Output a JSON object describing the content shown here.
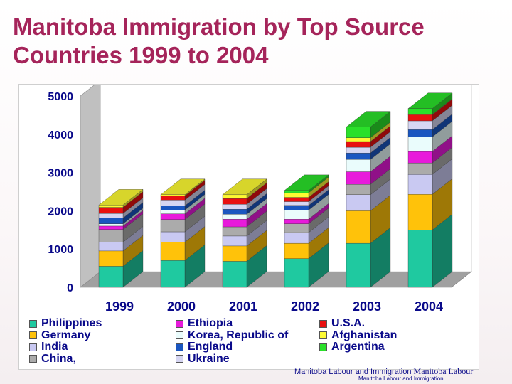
{
  "title": "Manitoba Immigration by Top Source Countries 1999 to 2004",
  "footer": {
    "credit_sans": "Manitoba Labour and Immigration",
    "credit_serif": "Manitoba Labour",
    "credit_small": "Manitoba Labour and Immigration"
  },
  "colors": {
    "title": "#a5245a",
    "legend_text": "#0a0a8a",
    "floor": "#a0a0a0",
    "wall": "#c0c0c0"
  },
  "chart_data": {
    "type": "bar",
    "stacked": true,
    "three_d": true,
    "categories": [
      "1999",
      "2000",
      "2001",
      "2002",
      "2003",
      "2004"
    ],
    "ylim": [
      0,
      5000
    ],
    "yticks": [
      "0",
      "1000",
      "2000",
      "3000",
      "4000",
      "5000"
    ],
    "grid": false,
    "legend_position": "bottom",
    "series": [
      {
        "name": "Philippines",
        "color": "#1fc9a0",
        "values": [
          550,
          700,
          680,
          750,
          1150,
          1500
        ]
      },
      {
        "name": "Germany",
        "color": "#ffc20a",
        "values": [
          400,
          480,
          400,
          400,
          850,
          930
        ]
      },
      {
        "name": "India",
        "color": "#c9c9f2",
        "values": [
          230,
          270,
          260,
          280,
          420,
          520
        ]
      },
      {
        "name": "China,",
        "color": "#ababab",
        "values": [
          330,
          320,
          240,
          230,
          270,
          300
        ]
      },
      {
        "name": "Ethiopia",
        "color": "#e81adb",
        "values": [
          90,
          150,
          200,
          120,
          330,
          300
        ]
      },
      {
        "name": "Korea, Republic of",
        "color": "#eafcfc",
        "values": [
          60,
          100,
          130,
          240,
          320,
          380
        ]
      },
      {
        "name": "England",
        "color": "#1a56c0",
        "values": [
          150,
          110,
          130,
          120,
          170,
          190
        ]
      },
      {
        "name": "Ukraine",
        "color": "#d6d6f2",
        "values": [
          120,
          150,
          130,
          100,
          150,
          230
        ]
      },
      {
        "name": "U.S.A.",
        "color": "#e81010",
        "values": [
          160,
          110,
          150,
          110,
          150,
          160
        ]
      },
      {
        "name": "Afghanistan",
        "color": "#fdfa33",
        "values": [
          60,
          30,
          100,
          120,
          100,
          10
        ]
      },
      {
        "name": "Argentina",
        "color": "#2ae02a",
        "values": [
          0,
          0,
          0,
          60,
          280,
          150
        ]
      }
    ]
  }
}
